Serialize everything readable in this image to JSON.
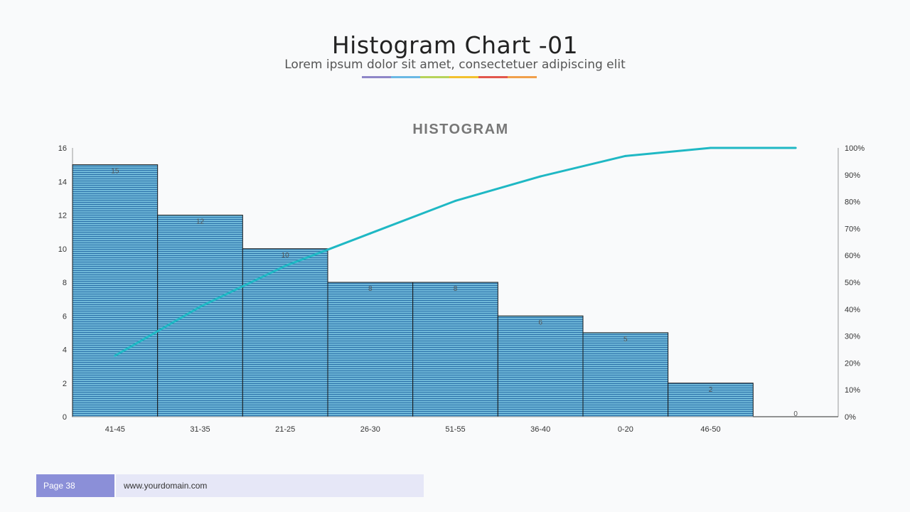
{
  "slide": {
    "title": "Histogram  Chart -01",
    "subtitle": "Lorem ipsum dolor sit amet, consectetuer adipiscing elit",
    "stripe_colors": [
      "#8e86c8",
      "#6ab8e4",
      "#b6d35a",
      "#f2c12e",
      "#e2574c",
      "#f0a04b"
    ]
  },
  "footer": {
    "page_label": "Page 38",
    "url": "www.yourdomain.com"
  },
  "colors": {
    "bar_fill": "#6fb8d8",
    "bar_stripe": "#2a6fa8",
    "line": "#1fb8c4",
    "axis": "#999999",
    "text": "#333333"
  },
  "chart_data": {
    "type": "bar",
    "title": "HISTOGRAM",
    "categories": [
      "41-45",
      "31-35",
      "21-25",
      "26-30",
      "51-55",
      "36-40",
      "0-20",
      "46-50",
      ""
    ],
    "values": [
      15,
      12,
      10,
      8,
      8,
      6,
      5,
      2,
      0
    ],
    "data_labels": [
      "15",
      "12",
      "10",
      "8",
      "8",
      "6",
      "5",
      "2",
      "0"
    ],
    "ylim": [
      0,
      16
    ],
    "yticks": [
      "0",
      "2",
      "4",
      "6",
      "8",
      "10",
      "12",
      "14",
      "16"
    ],
    "y2lim": [
      0,
      1
    ],
    "y2ticks": [
      "0%",
      "10%",
      "20%",
      "30%",
      "40%",
      "50%",
      "60%",
      "70%",
      "80%",
      "90%",
      "100%"
    ],
    "series": [
      {
        "type": "bar",
        "values": [
          15,
          12,
          10,
          8,
          8,
          6,
          5,
          2,
          0
        ]
      },
      {
        "type": "line",
        "axis": "secondary",
        "values": [
          0.227,
          0.409,
          0.561,
          0.682,
          0.803,
          0.894,
          0.97,
          1.0,
          1.0
        ]
      }
    ],
    "grid": false
  }
}
